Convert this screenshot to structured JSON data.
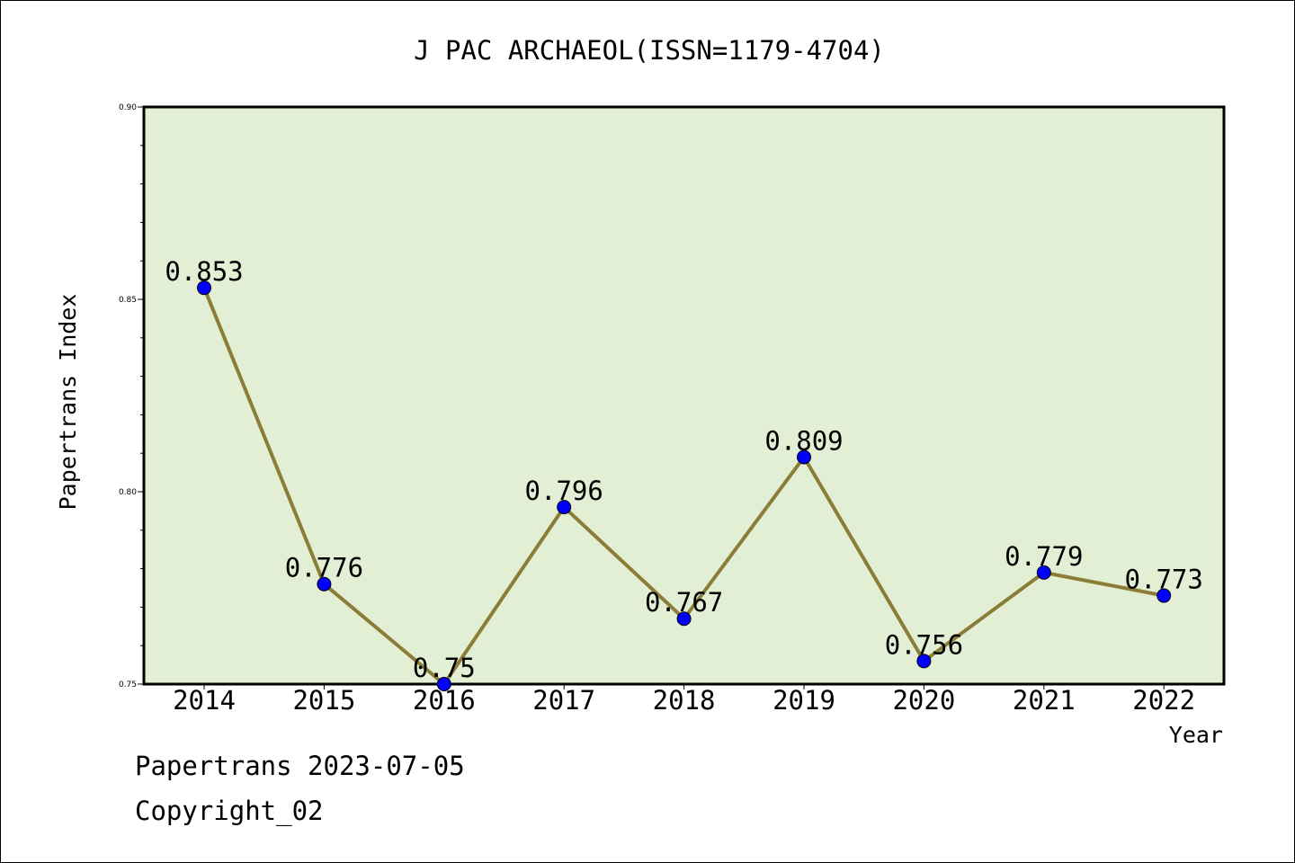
{
  "footer": {
    "line1": "Papertrans 2023-07-05",
    "line2": "Copyright_02"
  },
  "chart_data": {
    "type": "line",
    "title": "J PAC ARCHAEOL(ISSN=1179-4704)",
    "xlabel": "Year",
    "ylabel": "Papertrans Index",
    "categories": [
      "2014",
      "2015",
      "2016",
      "2017",
      "2018",
      "2019",
      "2020",
      "2021",
      "2022"
    ],
    "values": [
      0.853,
      0.776,
      0.75,
      0.796,
      0.767,
      0.809,
      0.756,
      0.779,
      0.773
    ],
    "data_labels": [
      "0.853",
      "0.776",
      "0.75",
      "0.796",
      "0.767",
      "0.809",
      "0.756",
      "0.779",
      "0.773"
    ],
    "ylim": [
      0.75,
      0.9
    ],
    "yticks": [
      0.75,
      0.8,
      0.85,
      0.9
    ],
    "ytick_labels": [
      "0.75",
      "0.80",
      "0.85",
      "0.90"
    ],
    "grid": false,
    "colors": {
      "plot_background": "#e2efd4",
      "line": "#8b7d37",
      "marker": "#0000ff"
    }
  }
}
